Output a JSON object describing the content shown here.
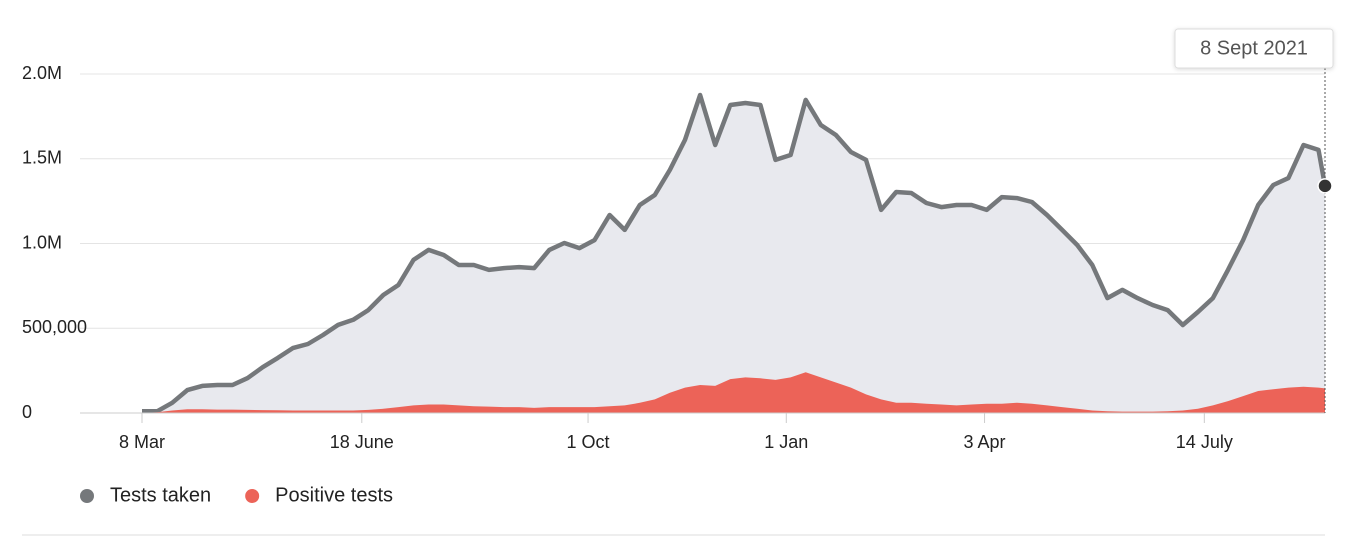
{
  "chart_data": {
    "type": "area",
    "annotation": "8 Sept 2021",
    "xlim": [
      0,
      549
    ],
    "xticks": [
      {
        "value": 0,
        "label": "8 Mar"
      },
      {
        "value": 102,
        "label": "18 June"
      },
      {
        "value": 207,
        "label": "1 Oct"
      },
      {
        "value": 299,
        "label": "1 Jan"
      },
      {
        "value": 391,
        "label": "3 Apr"
      },
      {
        "value": 493,
        "label": "14 July"
      }
    ],
    "ylim": [
      0,
      2000000
    ],
    "yticks": [
      0,
      {
        "value": 500000,
        "label": "500,000"
      },
      {
        "value": 1000000,
        "label": "1.0M"
      },
      {
        "value": 1500000,
        "label": "1.5M"
      },
      {
        "value": 2000000,
        "label": "2.0M"
      }
    ],
    "grid": true,
    "x": [
      0,
      7,
      14,
      21,
      28,
      35,
      42,
      49,
      56,
      63,
      70,
      77,
      84,
      91,
      98,
      105,
      112,
      119,
      126,
      133,
      140,
      147,
      154,
      161,
      168,
      175,
      182,
      189,
      196,
      203,
      210,
      217,
      224,
      231,
      238,
      245,
      252,
      259,
      266,
      273,
      280,
      287,
      294,
      301,
      308,
      315,
      322,
      329,
      336,
      343,
      350,
      357,
      364,
      371,
      378,
      385,
      392,
      399,
      406,
      413,
      420,
      427,
      434,
      441,
      448,
      455,
      462,
      469,
      476,
      483,
      490,
      497,
      504,
      511,
      518,
      525,
      532,
      539,
      546,
      549
    ],
    "series": [
      {
        "name": "Tests taken",
        "color": "#75787b",
        "fill": "#e8e9ee",
        "values": [
          10000,
          10000,
          60000,
          135000,
          160000,
          165000,
          165000,
          206000,
          270000,
          325000,
          383000,
          407000,
          460000,
          520000,
          550000,
          607000,
          696000,
          755000,
          903000,
          962000,
          932000,
          873000,
          873000,
          844000,
          855000,
          861000,
          855000,
          962000,
          1003000,
          973000,
          1020000,
          1168000,
          1080000,
          1227000,
          1286000,
          1434000,
          1611000,
          1876000,
          1581000,
          1817000,
          1829000,
          1817000,
          1493000,
          1522000,
          1847000,
          1699000,
          1640000,
          1540000,
          1493000,
          1198000,
          1304000,
          1298000,
          1239000,
          1215000,
          1227000,
          1227000,
          1198000,
          1274000,
          1268000,
          1245000,
          1168000,
          1080000,
          991000,
          873000,
          678000,
          726000,
          678000,
          637000,
          607000,
          519000,
          596000,
          678000,
          844000,
          1020000,
          1227000,
          1345000,
          1386000,
          1581000,
          1552000,
          1340000
        ]
      },
      {
        "name": "Positive tests",
        "color": "#ec6358",
        "fill": "#ec6358",
        "values": [
          0,
          5000,
          15000,
          22000,
          22000,
          20000,
          20000,
          18000,
          17000,
          16000,
          15000,
          15000,
          15000,
          15000,
          15000,
          18000,
          25000,
          35000,
          45000,
          50000,
          50000,
          45000,
          40000,
          38000,
          35000,
          35000,
          30000,
          35000,
          35000,
          35000,
          35000,
          40000,
          45000,
          60000,
          80000,
          120000,
          150000,
          165000,
          160000,
          200000,
          210000,
          205000,
          195000,
          210000,
          240000,
          210000,
          180000,
          150000,
          110000,
          80000,
          60000,
          60000,
          55000,
          50000,
          45000,
          50000,
          55000,
          55000,
          60000,
          55000,
          45000,
          35000,
          25000,
          15000,
          10000,
          8000,
          8000,
          8000,
          10000,
          15000,
          25000,
          45000,
          70000,
          100000,
          130000,
          140000,
          150000,
          155000,
          150000,
          145000
        ]
      }
    ]
  }
}
